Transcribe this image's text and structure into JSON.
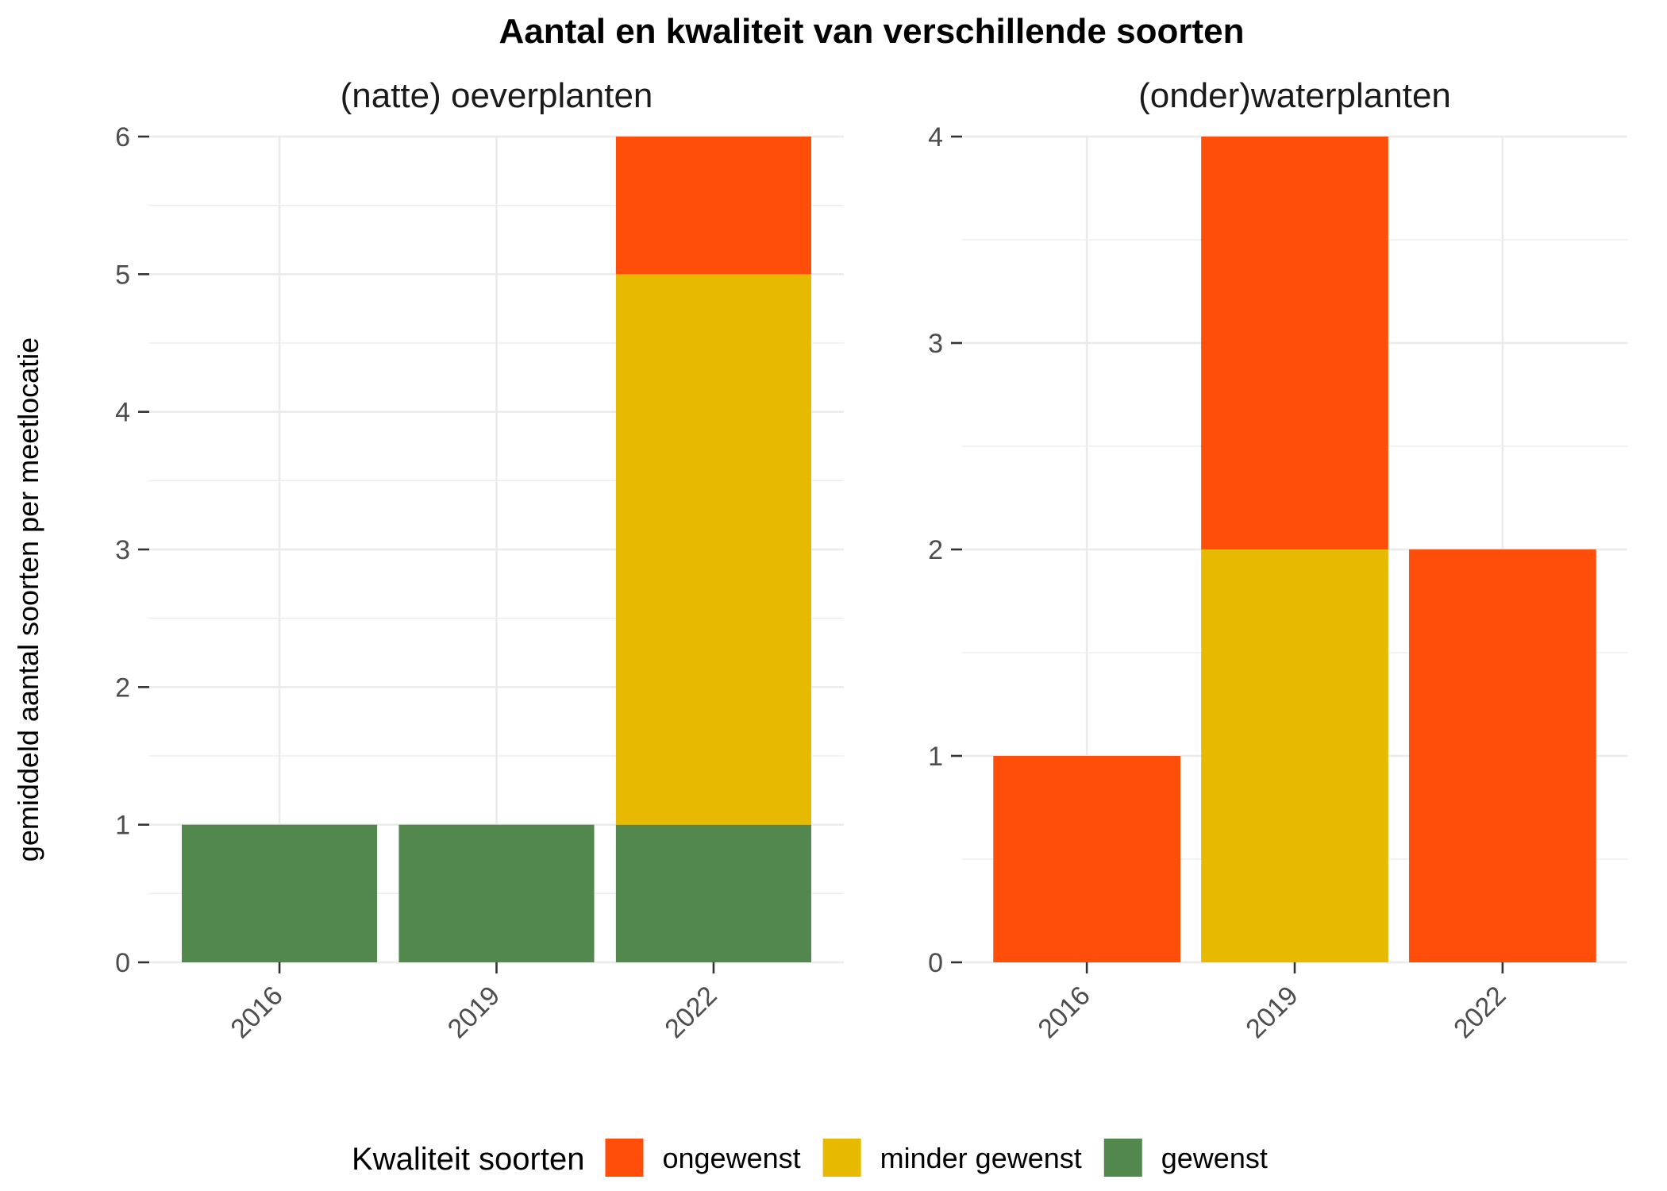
{
  "chart_data": {
    "type": "bar",
    "stacked": true,
    "title": "Aantal en kwaliteit van verschillende soorten",
    "ylabel": "gemiddeld aantal soorten per meetlocatie",
    "xlabel": "",
    "categories": [
      "2016",
      "2019",
      "2022"
    ],
    "legend": {
      "title": "Kwaliteit soorten",
      "placement": "bottom",
      "items": [
        {
          "name": "ongewenst",
          "color": "#FF4E0A"
        },
        {
          "name": "minder gewenst",
          "color": "#E5BA00"
        },
        {
          "name": "gewenst",
          "color": "#52874E"
        }
      ]
    },
    "facets": [
      {
        "name": "(natte) oeverplanten",
        "ylim": [
          0,
          6
        ],
        "yticks": [
          "0",
          "1",
          "2",
          "3",
          "4",
          "5",
          "6"
        ],
        "series": [
          {
            "name": "gewenst",
            "values": [
              1,
              1,
              1
            ]
          },
          {
            "name": "minder gewenst",
            "values": [
              0,
              0,
              4
            ]
          },
          {
            "name": "ongewenst",
            "values": [
              0,
              0,
              1
            ]
          }
        ]
      },
      {
        "name": "(onder)waterplanten",
        "ylim": [
          0,
          4
        ],
        "yticks": [
          "0",
          "1",
          "2",
          "3",
          "4"
        ],
        "series": [
          {
            "name": "gewenst",
            "values": [
              0,
              0,
              0
            ]
          },
          {
            "name": "minder gewenst",
            "values": [
              0,
              2,
              0
            ]
          },
          {
            "name": "ongewenst",
            "values": [
              1,
              2,
              2
            ]
          }
        ]
      }
    ]
  }
}
